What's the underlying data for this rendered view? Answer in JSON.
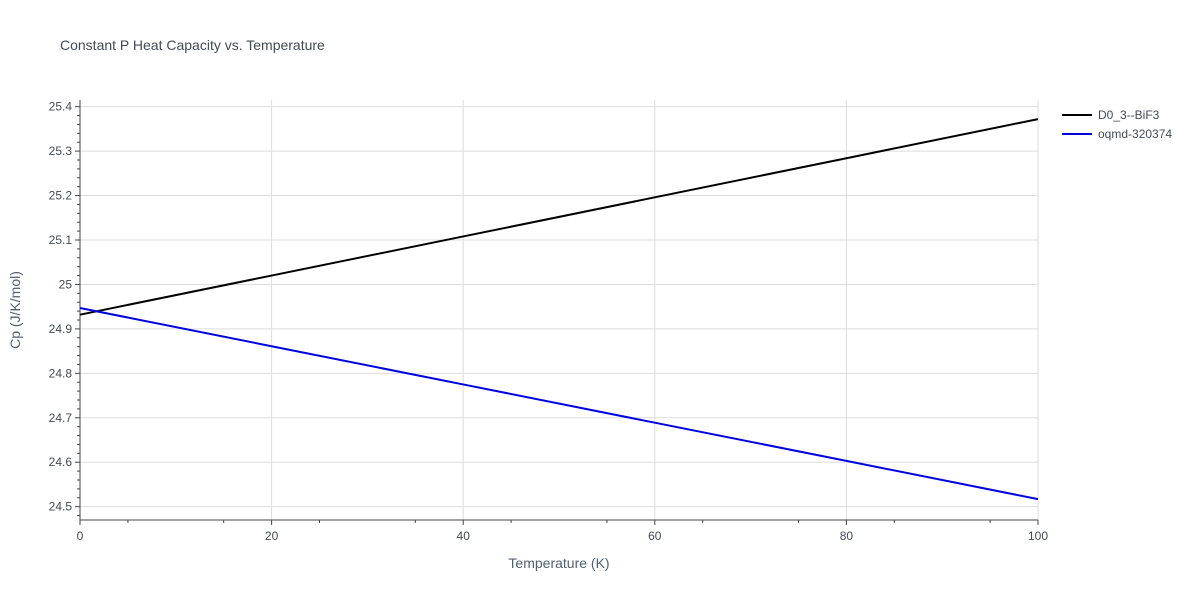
{
  "chart_data": {
    "type": "line",
    "title": "Constant P Heat Capacity vs. Temperature",
    "xlabel": "Temperature (K)",
    "ylabel": "Cp (J/K/mol)",
    "xlim": [
      0,
      100
    ],
    "ylim": [
      24.47,
      25.415
    ],
    "x_ticks": [
      0,
      20,
      40,
      60,
      80,
      100
    ],
    "y_ticks": [
      24.5,
      24.6,
      24.7,
      24.8,
      24.9,
      25,
      25.1,
      25.2,
      25.3,
      25.4
    ],
    "x_tick_labels": [
      "0",
      "20",
      "40",
      "60",
      "80",
      "100"
    ],
    "y_tick_labels": [
      "24.5",
      "24.6",
      "24.7",
      "24.8",
      "24.9",
      "25",
      "25.1",
      "25.2",
      "25.3",
      "25.4"
    ],
    "grid": true,
    "legend_position": "top-right",
    "series": [
      {
        "name": "D0_3--BiF3",
        "color": "#000000",
        "x": [
          0,
          20,
          40,
          60,
          80,
          100
        ],
        "y": [
          24.932,
          25.02,
          25.108,
          25.196,
          25.284,
          25.372
        ]
      },
      {
        "name": "oqmd-320374",
        "color": "#0000dd",
        "x": [
          0,
          20,
          40,
          60,
          80,
          100
        ],
        "y": [
          24.947,
          24.861,
          24.775,
          24.689,
          24.603,
          24.517
        ]
      }
    ]
  }
}
